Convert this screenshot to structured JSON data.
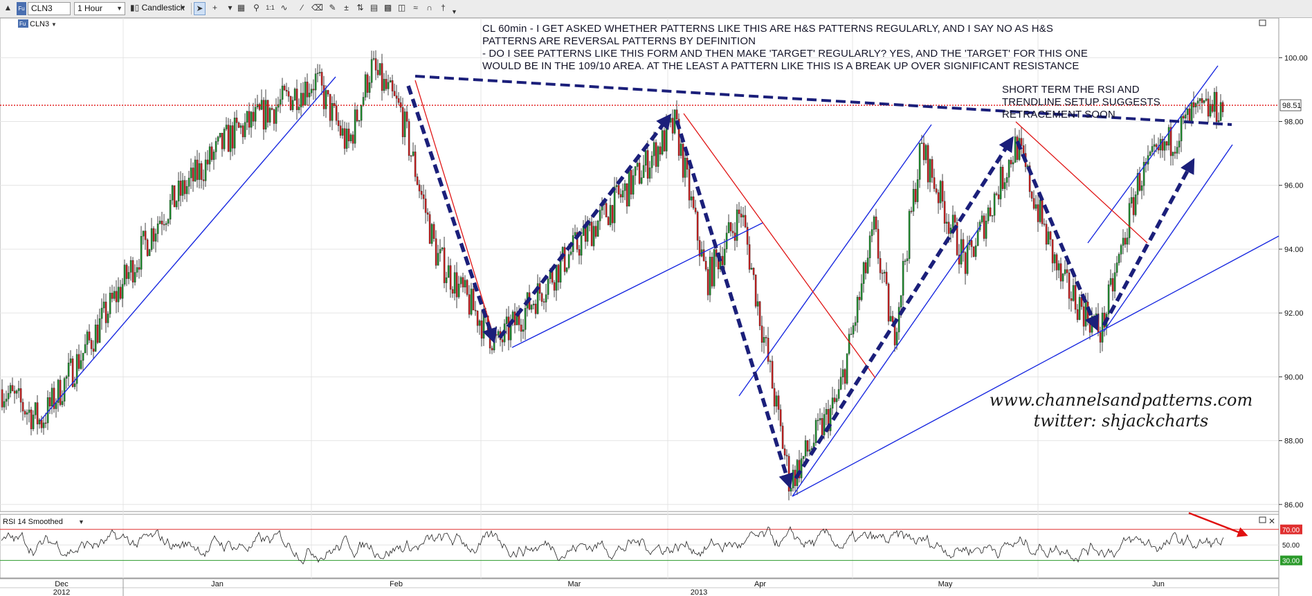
{
  "toolbar": {
    "symbol": "CLN3",
    "interval": "1 Hour",
    "chart_style": "Candlestick",
    "icons": [
      "scroll-up-icon",
      "symbol-fu-icon",
      "cursor-icon",
      "crosshair-icon",
      "grid-icon",
      "zoom-icon",
      "one-to-one-icon",
      "pencil-icon",
      "trendline-icon",
      "eraser-icon",
      "plus-minus-icon",
      "price-tool-icon",
      "note-icon",
      "fib-icon",
      "wave-icon",
      "magnet-icon"
    ],
    "one_to_one_label": "1:1"
  },
  "instrument_label": "CLN3",
  "annotations": {
    "main_note": "CL 60min - I GET ASKED WHETHER PATTERNS LIKE THIS ARE H&S PATTERNS REGULARLY, AND I SAY NO AS H&S\nPATTERNS ARE REVERSAL PATTERNS BY DEFINITION\n- DO I SEE PATTERNS LIKE THIS FORM AND THEN MAKE 'TARGET' REGULARLY? YES, AND THE 'TARGET' FOR THIS ONE\nWOULD BE IN THE 109/10 AREA. AT THE LEAST A PATTERN LIKE THIS IS A BREAK UP OVER SIGNIFICANT RESISTANCE",
    "short_note": "SHORT TERM THE RSI AND\nTRENDLINE SETUP SUGGESTS\nRETRACEMENT SOON",
    "website": "www.channelsandpatterns.com",
    "twitter": "twitter: shjackcharts"
  },
  "chart_data": [
    {
      "type": "candlestick",
      "title": "CL 60min",
      "symbol": "CLN3",
      "interval": "1 Hour",
      "ylim": [
        85.8,
        101.2
      ],
      "y_ticks": [
        "100.00",
        "98.00",
        "96.00",
        "94.00",
        "92.00",
        "90.00",
        "88.00",
        "86.00"
      ],
      "last_price": "98.51",
      "x_month_labels": [
        "Dec",
        "Jan",
        "Feb",
        "Mar",
        "Apr",
        "May",
        "Jun"
      ],
      "x_year_labels": [
        "2012",
        "2013"
      ],
      "colors": {
        "up": "#1f8a2e",
        "down": "#c21f1f",
        "wick": "#111111",
        "price_line": "#e01010"
      },
      "price_path_anchors": [
        {
          "x": "Dec",
          "y": 89.6
        },
        {
          "x": "Dec",
          "y": 88.6
        },
        {
          "x": "Jan",
          "y": 91.5
        },
        {
          "x": "Jan",
          "y": 95.0
        },
        {
          "x": "Jan",
          "y": 97.5
        },
        {
          "x": "Feb",
          "y": 99.3
        },
        {
          "x": "Feb",
          "y": 97.2
        },
        {
          "x": "Feb",
          "y": 99.7
        },
        {
          "x": "Feb",
          "y": 98.3
        },
        {
          "x": "Feb",
          "y": 93.8
        },
        {
          "x": "Mar",
          "y": 91.0
        },
        {
          "x": "Mar",
          "y": 93.8
        },
        {
          "x": "Mar",
          "y": 96.0
        },
        {
          "x": "Mar",
          "y": 97.9
        },
        {
          "x": "Apr",
          "y": 93.0
        },
        {
          "x": "Apr",
          "y": 95.2
        },
        {
          "x": "Apr",
          "y": 86.7
        },
        {
          "x": "Apr",
          "y": 89.3
        },
        {
          "x": "Apr",
          "y": 94.6
        },
        {
          "x": "May",
          "y": 91.2
        },
        {
          "x": "May",
          "y": 97.2
        },
        {
          "x": "May",
          "y": 93.5
        },
        {
          "x": "May",
          "y": 97.3
        },
        {
          "x": "Jun",
          "y": 93.0
        },
        {
          "x": "Jun",
          "y": 91.4
        },
        {
          "x": "Jun",
          "y": 96.2
        },
        {
          "x": "Jun",
          "y": 98.2
        },
        {
          "x": "Jun",
          "y": 98.5
        }
      ]
    },
    {
      "type": "line",
      "title": "RSI 14 Smoothed",
      "ylim": [
        10,
        85
      ],
      "reference_levels": [
        {
          "label": "70.00",
          "value": 70,
          "color": "#e03030"
        },
        {
          "label": "50.00",
          "value": 50
        },
        {
          "label": "30.00",
          "value": 30,
          "color": "#2a9a2a"
        }
      ],
      "tick_labels": [
        "70.00",
        "50.00",
        "30.00"
      ]
    }
  ]
}
